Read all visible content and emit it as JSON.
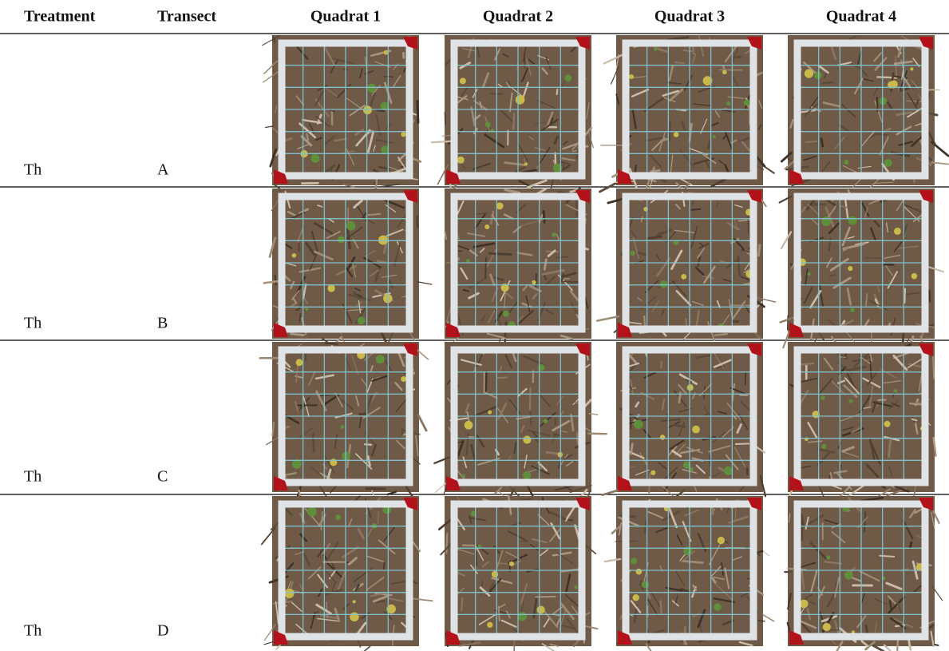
{
  "table": {
    "header": [
      "Treatment",
      "Transect",
      "Quadrat 1",
      "Quadrat 2",
      "Quadrat 3",
      "Quadrat 4"
    ],
    "rows": [
      [
        "Th",
        "A"
      ],
      [
        "Th",
        "B"
      ],
      [
        "Th",
        "C"
      ],
      [
        "Th",
        "D"
      ]
    ]
  }
}
